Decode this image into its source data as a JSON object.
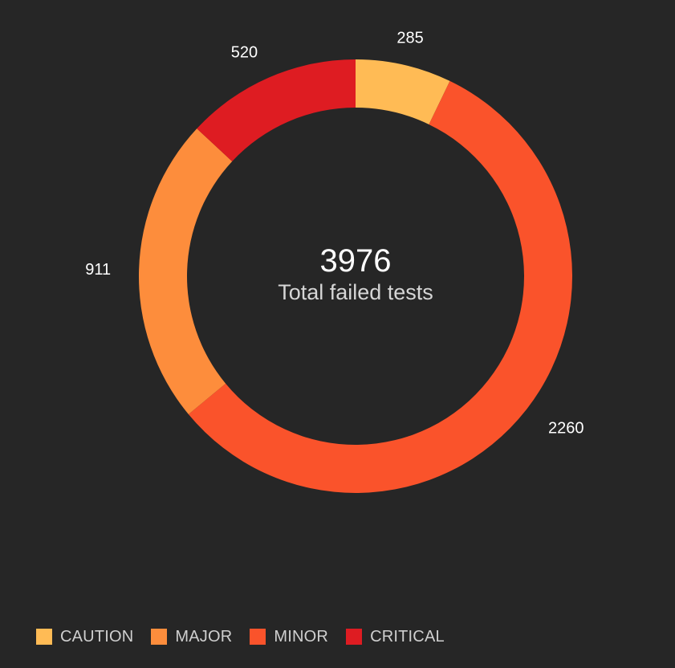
{
  "chart_data": {
    "type": "pie",
    "categories": [
      "CAUTION",
      "MINOR",
      "MAJOR",
      "CRITICAL"
    ],
    "values": [
      285,
      2260,
      911,
      520
    ],
    "colors": {
      "CAUTION": "#ffbb55",
      "MINOR": "#fa532b",
      "MAJOR": "#fd8d3c",
      "CRITICAL": "#de1c22"
    },
    "donut": true,
    "total": "3976",
    "center_caption": "Total failed tests",
    "legend": [
      "CAUTION",
      "MAJOR",
      "MINOR",
      "CRITICAL"
    ],
    "legend_placement": "bottom-left"
  },
  "background": "#262626"
}
